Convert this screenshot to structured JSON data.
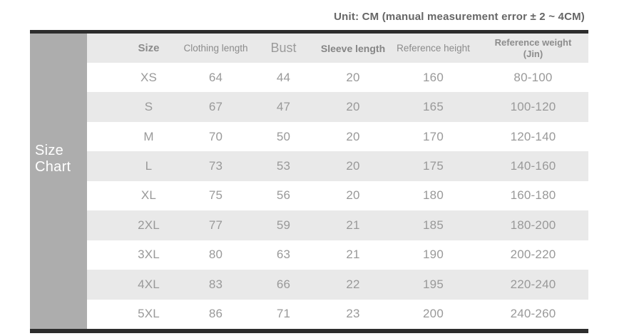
{
  "unit_note": "Unit: CM (manual measurement error ± 2 ~ 4CM)",
  "sidebar": {
    "label": "Size\nChart"
  },
  "colors": {
    "accent-bar": "#2d2d2d",
    "sidebar-bg": "#adadad",
    "header-bg": "#e9e9e9",
    "row-alt-bg": "#e9e9e9",
    "header-text": "#8c8c8c",
    "cell-text": "#999999",
    "note-text": "#666666"
  },
  "chart_data": {
    "type": "table",
    "title": "Size Chart",
    "unit_note": "Unit: CM (manual measurement error ± 2 ~ 4CM)",
    "columns": [
      "Size",
      "Clothing length",
      "Bust",
      "Sleeve length",
      "Reference height",
      "Reference weight\n(Jin)"
    ],
    "rows": [
      [
        "XS",
        "64",
        "44",
        "20",
        "160",
        "80-100"
      ],
      [
        "S",
        "67",
        "47",
        "20",
        "165",
        "100-120"
      ],
      [
        "M",
        "70",
        "50",
        "20",
        "170",
        "120-140"
      ],
      [
        "L",
        "73",
        "53",
        "20",
        "175",
        "140-160"
      ],
      [
        "XL",
        "75",
        "56",
        "20",
        "180",
        "160-180"
      ],
      [
        "2XL",
        "77",
        "59",
        "21",
        "185",
        "180-200"
      ],
      [
        "3XL",
        "80",
        "63",
        "21",
        "190",
        "200-220"
      ],
      [
        "4XL",
        "83",
        "66",
        "22",
        "195",
        "220-240"
      ],
      [
        "5XL",
        "86",
        "71",
        "23",
        "200",
        "240-260"
      ]
    ],
    "layout": {
      "row_striping": "white and light gray alternating, starting white at XS",
      "legend": "none",
      "grid": "off"
    }
  }
}
